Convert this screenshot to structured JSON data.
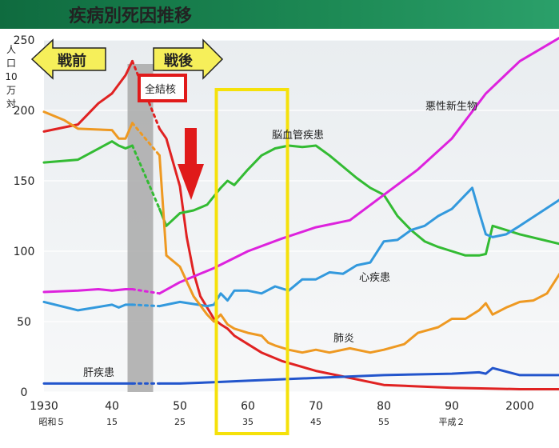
{
  "chart_data": {
    "type": "line",
    "title": "疾病別死因推移",
    "ylabel": "人口10万対",
    "ylim": [
      0,
      250
    ],
    "xlim": [
      1930,
      2006
    ],
    "grid": true,
    "y_ticks": [
      "0",
      "50",
      "100",
      "150",
      "200",
      "250"
    ],
    "x_ticks": [
      {
        "x": 1930,
        "label": "1930",
        "sub": "昭和５"
      },
      {
        "x": 1940,
        "label": "40",
        "sub": "15"
      },
      {
        "x": 1950,
        "label": "50",
        "sub": "25"
      },
      {
        "x": 1960,
        "label": "60",
        "sub": "35"
      },
      {
        "x": 1970,
        "label": "70",
        "sub": "45"
      },
      {
        "x": 1980,
        "label": "80",
        "sub": "55"
      },
      {
        "x": 1990,
        "label": "90",
        "sub": "平成２"
      },
      {
        "x": 2000,
        "label": "2000",
        "sub": ""
      }
    ],
    "war_gap": [
      1943,
      1947
    ],
    "prewar_label": "戦前",
    "postwar_label": "戦後",
    "highlight_range": [
      1955,
      1965
    ],
    "colors": {
      "結核": "#e02222",
      "脳血管疾患": "#33bb33",
      "悪性新生物": "#dd22dd",
      "心疾患": "#3399dd",
      "肺炎": "#ee9922",
      "肝疾患": "#2255cc"
    },
    "series": [
      {
        "name": "結核",
        "label": "全結核",
        "x": [
          1930,
          1935,
          1938,
          1940,
          1942,
          1943,
          1947,
          1948,
          1950,
          1951,
          1952,
          1953,
          1954,
          1955,
          1956,
          1957,
          1958,
          1960,
          1962,
          1965,
          1970,
          1975,
          1980,
          1985,
          1990,
          1995,
          2000,
          2006
        ],
        "y": [
          185,
          190,
          205,
          212,
          225,
          235,
          187,
          180,
          146,
          110,
          85,
          68,
          60,
          52,
          48,
          45,
          40,
          34,
          28,
          22,
          15,
          10,
          5,
          4,
          3,
          2.5,
          2,
          2
        ]
      },
      {
        "name": "脳血管疾患",
        "x": [
          1930,
          1935,
          1940,
          1941,
          1942,
          1943,
          1947,
          1948,
          1950,
          1952,
          1954,
          1956,
          1957,
          1958,
          1960,
          1962,
          1964,
          1966,
          1968,
          1970,
          1972,
          1974,
          1976,
          1978,
          1980,
          1982,
          1984,
          1986,
          1988,
          1990,
          1992,
          1994,
          1995,
          1996,
          1998,
          2000,
          2006
        ],
        "y": [
          163,
          165,
          178,
          175,
          173,
          175,
          130,
          118,
          127,
          129,
          133,
          145,
          150,
          147,
          158,
          168,
          173,
          175,
          174,
          175,
          168,
          160,
          152,
          145,
          140,
          125,
          115,
          107,
          103,
          100,
          97,
          97,
          98,
          118,
          115,
          112,
          105
        ]
      },
      {
        "name": "悪性新生物",
        "x": [
          1930,
          1935,
          1938,
          1940,
          1942,
          1943,
          1947,
          1950,
          1955,
          1960,
          1965,
          1970,
          1975,
          1980,
          1985,
          1990,
          1995,
          2000,
          2006
        ],
        "y": [
          71,
          72,
          73,
          72,
          73,
          73,
          70,
          78,
          88,
          100,
          109,
          117,
          122,
          140,
          158,
          180,
          212,
          235,
          252
        ]
      },
      {
        "name": "心疾患",
        "x": [
          1930,
          1935,
          1940,
          1941,
          1942,
          1943,
          1947,
          1950,
          1954,
          1955,
          1956,
          1957,
          1958,
          1960,
          1962,
          1964,
          1966,
          1968,
          1970,
          1972,
          1974,
          1976,
          1978,
          1980,
          1982,
          1984,
          1986,
          1988,
          1990,
          1992,
          1993,
          1994,
          1995,
          1996,
          1998,
          2000,
          2006
        ],
        "y": [
          64,
          58,
          62,
          60,
          62,
          62,
          61,
          64,
          61,
          62,
          70,
          65,
          72,
          72,
          70,
          75,
          72,
          80,
          80,
          85,
          84,
          90,
          92,
          107,
          108,
          115,
          118,
          125,
          130,
          140,
          145,
          128,
          112,
          110,
          112,
          118,
          137
        ]
      },
      {
        "name": "肺炎",
        "x": [
          1930,
          1933,
          1935,
          1940,
          1941,
          1942,
          1943,
          1947,
          1948,
          1950,
          1952,
          1954,
          1955,
          1956,
          1957,
          1958,
          1960,
          1962,
          1963,
          1964,
          1966,
          1968,
          1970,
          1972,
          1975,
          1978,
          1980,
          1983,
          1985,
          1988,
          1990,
          1992,
          1994,
          1995,
          1996,
          1998,
          2000,
          2002,
          2004,
          2006
        ],
        "y": [
          199,
          193,
          187,
          186,
          180,
          180,
          191,
          168,
          97,
          89,
          68,
          55,
          50,
          55,
          48,
          45,
          42,
          40,
          35,
          33,
          30,
          28,
          30,
          28,
          31,
          28,
          30,
          34,
          42,
          46,
          52,
          52,
          58,
          63,
          55,
          60,
          64,
          65,
          70,
          85
        ]
      },
      {
        "name": "肝疾患",
        "x": [
          1930,
          1940,
          1943,
          1947,
          1950,
          1955,
          1960,
          1970,
          1980,
          1990,
          1994,
          1995,
          1996,
          2000,
          2006
        ],
        "y": [
          6,
          6,
          6,
          6,
          6,
          7,
          8,
          10,
          12,
          13,
          14,
          13,
          17,
          12,
          12
        ]
      }
    ],
    "labels": {
      "tb": "全結核",
      "cerebro": "脳血管疾患",
      "cancer": "悪性新生物",
      "heart": "心疾患",
      "pneumonia": "肺炎",
      "liver": "肝疾患"
    }
  }
}
